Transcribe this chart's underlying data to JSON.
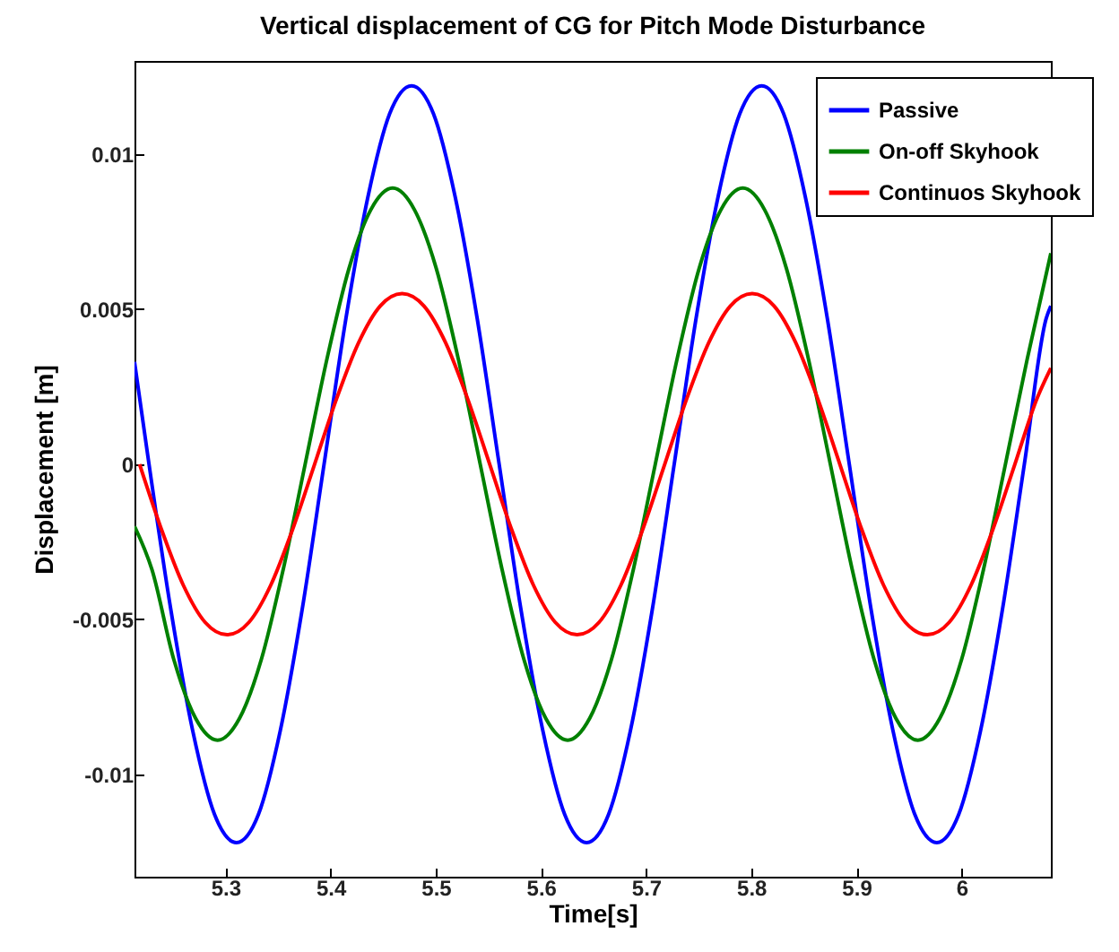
{
  "chart_data": {
    "type": "line",
    "title": "Vertical displacement of CG for Pitch Mode Disturbance",
    "xlabel": "Time[s]",
    "ylabel": "Displacement [m]",
    "xlim": [
      5.2135,
      6.085
    ],
    "ylim": [
      -0.0133,
      0.013
    ],
    "xticks": [
      5.3,
      5.4,
      5.5,
      5.6,
      5.7,
      5.8,
      5.9,
      6
    ],
    "yticks": [
      -0.01,
      -0.005,
      0,
      0.005,
      0.01
    ],
    "legend": "top right",
    "series": [
      {
        "name": "Passive",
        "color": "#0000ff",
        "x": [
          5.2135,
          5.2273,
          5.2481,
          5.2689,
          5.2897,
          5.3105,
          5.3313,
          5.3521,
          5.3729,
          5.3938,
          5.4146,
          5.4354,
          5.4562,
          5.477,
          5.4978,
          5.5186,
          5.5394,
          5.5603,
          5.5811,
          5.6019,
          5.6227,
          5.6435,
          5.6643,
          5.6851,
          5.7059,
          5.7268,
          5.7476,
          5.7684,
          5.7892,
          5.81,
          5.8308,
          5.8516,
          5.8724,
          5.8933,
          5.9141,
          5.9349,
          5.9557,
          5.9765,
          5.9973,
          6.0181,
          6.0389,
          6.0598,
          6.0806,
          6.085
        ],
        "values": [
          0.0033,
          0,
          -0.0047,
          -0.0086,
          -0.0113,
          -0.0122,
          -0.0113,
          -0.0086,
          -0.0047,
          0,
          0.0047,
          0.0086,
          0.0113,
          0.0122,
          0.0113,
          0.0086,
          0.0047,
          0,
          -0.0047,
          -0.0086,
          -0.0113,
          -0.0122,
          -0.0113,
          -0.0086,
          -0.0047,
          0,
          0.0047,
          0.0086,
          0.0113,
          0.0122,
          0.0113,
          0.0086,
          0.0047,
          0,
          -0.0047,
          -0.0086,
          -0.0113,
          -0.0122,
          -0.0113,
          -0.0086,
          -0.0047,
          0,
          0.0047,
          0.0051
        ]
      },
      {
        "name": "On-off Skyhook",
        "color": "#008000",
        "x": [
          5.2135,
          5.2301,
          5.2509,
          5.2717,
          5.2925,
          5.3133,
          5.3341,
          5.3549,
          5.3758,
          5.3966,
          5.4174,
          5.4382,
          5.459,
          5.4798,
          5.5006,
          5.5214,
          5.5423,
          5.5631,
          5.5839,
          5.6047,
          5.6255,
          5.6463,
          5.6671,
          5.6879,
          5.7088,
          5.7296,
          5.7504,
          5.7712,
          5.792,
          5.8128,
          5.8336,
          5.8544,
          5.8753,
          5.8961,
          5.9169,
          5.9377,
          5.9585,
          5.9793,
          6.0001,
          6.0209,
          6.0418,
          6.0626,
          6.085
        ],
        "values": [
          -0.002,
          -0.0034,
          -0.0063,
          -0.0082,
          -0.0089,
          -0.0082,
          -0.0063,
          -0.0034,
          0,
          0.0034,
          0.0063,
          0.0082,
          0.0089,
          0.0082,
          0.0063,
          0.0034,
          0,
          -0.0034,
          -0.0063,
          -0.0082,
          -0.0089,
          -0.0082,
          -0.0063,
          -0.0034,
          0,
          0.0034,
          0.0063,
          0.0082,
          0.0089,
          0.0082,
          0.0063,
          0.0034,
          0,
          -0.0034,
          -0.0063,
          -0.0082,
          -0.0089,
          -0.0082,
          -0.0063,
          -0.0034,
          0,
          0.0034,
          0.0068
        ]
      },
      {
        "name": "Continuos Skyhook",
        "color": "#ff0000",
        "x": [
          5.2183,
          5.2391,
          5.2599,
          5.2807,
          5.3015,
          5.3223,
          5.3431,
          5.3639,
          5.3848,
          5.4056,
          5.4264,
          5.4472,
          5.468,
          5.4888,
          5.5096,
          5.5304,
          5.5513,
          5.5721,
          5.5929,
          5.6137,
          5.6345,
          5.6553,
          5.6761,
          5.6969,
          5.7178,
          5.7386,
          5.7594,
          5.7802,
          5.801,
          5.8218,
          5.8426,
          5.8634,
          5.8843,
          5.9051,
          5.9259,
          5.9467,
          5.9675,
          5.9883,
          6.0091,
          6.0299,
          6.0508,
          6.0716,
          6.085
        ],
        "values": [
          0,
          -0.0021,
          -0.0039,
          -0.0051,
          -0.0055,
          -0.0051,
          -0.0039,
          -0.0021,
          0,
          0.0021,
          0.0039,
          0.0051,
          0.0055,
          0.0051,
          0.0039,
          0.0021,
          0,
          -0.0021,
          -0.0039,
          -0.0051,
          -0.0055,
          -0.0051,
          -0.0039,
          -0.0021,
          0,
          0.0021,
          0.0039,
          0.0051,
          0.0055,
          0.0051,
          0.0039,
          0.0021,
          0,
          -0.0021,
          -0.0039,
          -0.0051,
          -0.0055,
          -0.0051,
          -0.0039,
          -0.0021,
          0,
          0.0021,
          0.0031
        ]
      }
    ]
  }
}
